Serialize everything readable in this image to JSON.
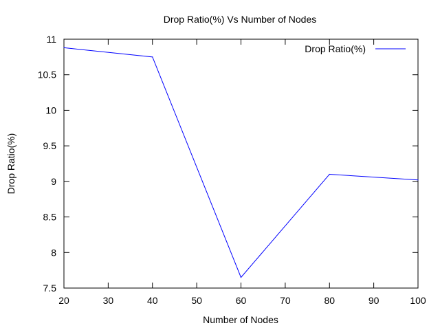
{
  "chart_data": {
    "type": "line",
    "title": "Drop Ratio(%) Vs Number of Nodes",
    "xlabel": "Number of Nodes",
    "ylabel": "Drop Ratio(%)",
    "x": [
      20,
      40,
      60,
      80,
      100
    ],
    "series": [
      {
        "name": "Drop Ratio(%)",
        "values": [
          10.88,
          10.75,
          7.65,
          9.1,
          9.02
        ],
        "color": "#0000ff"
      }
    ],
    "xlim": [
      20,
      100
    ],
    "ylim": [
      7.5,
      11
    ],
    "xticks": [
      20,
      30,
      40,
      50,
      60,
      70,
      80,
      90,
      100
    ],
    "yticks": [
      7.5,
      8,
      8.5,
      9,
      9.5,
      10,
      10.5,
      11
    ],
    "xtick_labels": [
      "20",
      "30",
      "40",
      "50",
      "60",
      "70",
      "80",
      "90",
      "100"
    ],
    "ytick_labels": [
      "7.5",
      "8",
      "8.5",
      "9",
      "9.5",
      "10",
      "10.5",
      "11"
    ],
    "grid": false,
    "legend_position": "top-right"
  }
}
